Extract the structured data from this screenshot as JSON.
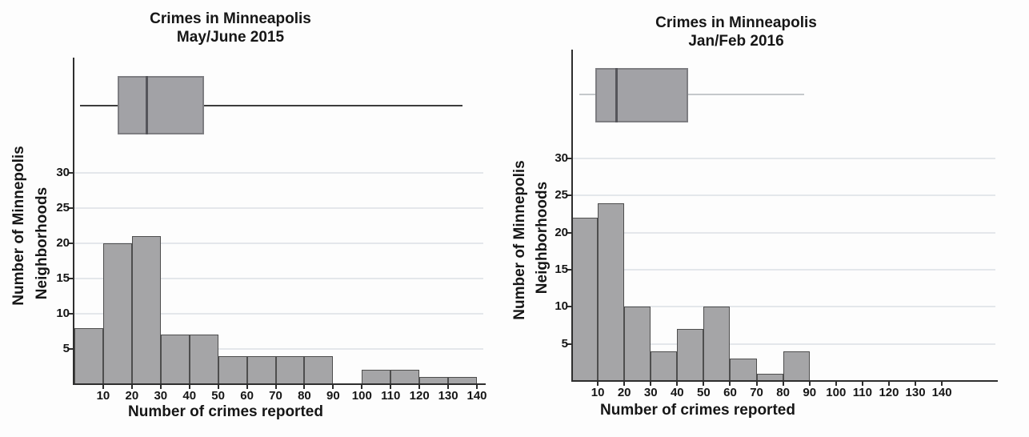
{
  "figure": {
    "description_left_title": "Crimes in Minneapolis",
    "description_right_title": "Crimes in Minneapolis"
  },
  "colors": {
    "background": "#fdfdfd",
    "bar_fill": "#a5a5a7",
    "bar_border": "#4e4e4e",
    "box_fill": "#a2a2a6",
    "box_border": "#7e7e82",
    "median": "#55555a",
    "whisker_dark": "#3c3c3c",
    "whisker_light": "#c5c8cb",
    "grid": "#e4e7eb",
    "axis": "#2e2e2e",
    "text": "#161616"
  },
  "chart_data": [
    {
      "type": "bar",
      "subtype": "histogram_with_boxplot",
      "title": "Crimes in Minneapolis",
      "subtitle": "May/June 2015",
      "xlabel": "Number of crimes reported",
      "ylabel": "Number of Minnepolis Neighborhoods",
      "ylabel_line1": "Number of Minnepolis",
      "ylabel_line2": "Neighborhoods",
      "bin_width": 10,
      "categories": [
        "0-10",
        "10-20",
        "20-30",
        "30-40",
        "40-50",
        "50-60",
        "60-70",
        "70-80",
        "80-90",
        "90-100",
        "100-110",
        "110-120",
        "120-130",
        "130-140"
      ],
      "values": [
        8,
        20,
        21,
        7,
        7,
        4,
        4,
        4,
        4,
        0,
        2,
        2,
        1,
        1
      ],
      "x_ticks": [
        10,
        20,
        30,
        40,
        50,
        60,
        70,
        80,
        90,
        100,
        110,
        120,
        130,
        140
      ],
      "y_ticks": [
        5,
        10,
        15,
        20,
        25,
        30
      ],
      "xlim": [
        0,
        140
      ],
      "ylim": [
        0,
        30
      ],
      "grid": "horizontal",
      "legend": "none",
      "boxplot": {
        "min": 2,
        "q1": 15,
        "median": 25,
        "q3": 45,
        "max": 135,
        "whisker_shade": "dark"
      }
    },
    {
      "type": "bar",
      "subtype": "histogram_with_boxplot",
      "title": "Crimes in Minneapolis",
      "subtitle": "Jan/Feb 2016",
      "xlabel": "Number of crimes reported",
      "ylabel": "Number of Minnepolis Neighborhoods",
      "ylabel_line1": "Number of Minnepolis",
      "ylabel_line2": "Neighborhoods",
      "bin_width": 10,
      "categories": [
        "0-10",
        "10-20",
        "20-30",
        "30-40",
        "40-50",
        "50-60",
        "60-70",
        "70-80",
        "80-90",
        "90-100",
        "100-110",
        "110-120",
        "120-130",
        "130-140"
      ],
      "values": [
        22,
        24,
        10,
        4,
        7,
        10,
        3,
        1,
        4,
        0,
        0,
        0,
        0,
        0
      ],
      "x_ticks": [
        10,
        20,
        30,
        40,
        50,
        60,
        70,
        80,
        90,
        100,
        110,
        120,
        130,
        140
      ],
      "y_ticks": [
        5,
        10,
        15,
        20,
        25,
        30
      ],
      "xlim": [
        0,
        140
      ],
      "ylim": [
        0,
        30
      ],
      "grid": "horizontal",
      "legend": "none",
      "boxplot": {
        "min": 3,
        "q1": 9,
        "median": 17,
        "q3": 44,
        "max": 88,
        "whisker_shade": "light"
      }
    }
  ]
}
